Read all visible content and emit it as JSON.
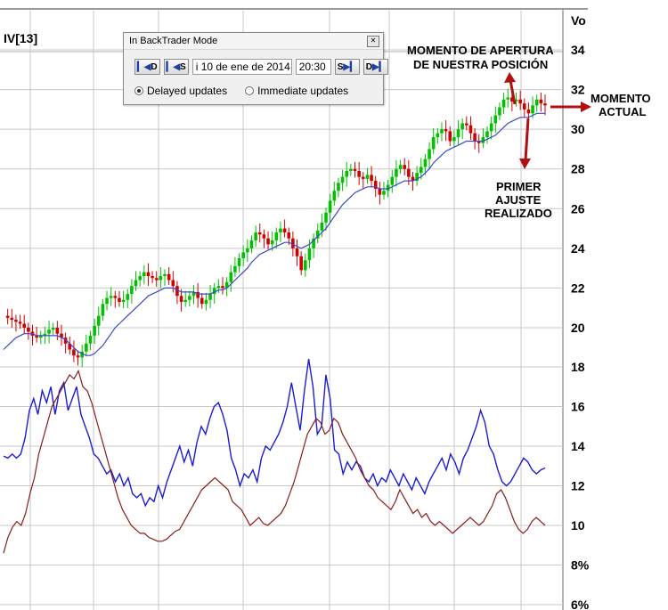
{
  "indicator_label": "IV[13]",
  "axis_header": "Vo",
  "colors": {
    "up": "#00c000",
    "down": "#d00000",
    "ma": "#3a48c8",
    "iv_line": "#1c1cd0",
    "hv_line": "#8b1a1a",
    "annotation_arrow": "#b01010",
    "grid": "#c8c8c8"
  },
  "panel": {
    "title": "In BackTrader Mode",
    "close_icon": "close-icon",
    "buttons": [
      {
        "label": "D",
        "icon": "step-back-icon"
      },
      {
        "label": "S",
        "icon": "step-back-icon"
      }
    ],
    "date": "i 10 de ene de 2014",
    "time": "20:30",
    "forward_buttons": [
      {
        "label": "S",
        "icon": "step-forward-icon"
      },
      {
        "label": "D",
        "icon": "step-forward-icon"
      }
    ],
    "radio_delayed": "Delayed updates",
    "radio_immediate": "Immediate updates",
    "selected": "delayed"
  },
  "annotations": {
    "open_line1": "MOMENTO DE APERTURA",
    "open_line2": "DE NUESTRA POSICIÓN",
    "current_line1": "MOMENTO",
    "current_line2": "ACTUAL",
    "adjust_line1": "PRIMER",
    "adjust_line2": "AJUSTE",
    "adjust_line3": "REALIZADO"
  },
  "chart_data": {
    "type": "line",
    "price_axis": {
      "ticks": [
        "34",
        "32",
        "30",
        "28",
        "26",
        "24",
        "22",
        "20"
      ],
      "range": [
        18.5,
        35.5
      ]
    },
    "vol_axis": {
      "ticks": [
        "18",
        "16",
        "14",
        "12",
        "10",
        "8%",
        "6%"
      ],
      "range": [
        6,
        19
      ]
    },
    "price_close": [
      20.6,
      20.5,
      20.4,
      20.3,
      20.2,
      20.0,
      19.8,
      19.6,
      19.5,
      19.6,
      19.7,
      19.9,
      20.0,
      19.7,
      19.5,
      19.2,
      18.9,
      18.6,
      18.5,
      18.8,
      19.2,
      19.6,
      20.1,
      20.6,
      21.2,
      21.5,
      21.6,
      21.5,
      21.3,
      21.4,
      21.7,
      22.1,
      22.4,
      22.6,
      22.8,
      22.6,
      22.5,
      22.4,
      22.6,
      22.7,
      22.4,
      22.1,
      21.6,
      21.3,
      21.4,
      21.6,
      21.8,
      21.5,
      21.2,
      21.4,
      21.7,
      22.0,
      22.1,
      22.0,
      22.3,
      22.8,
      23.1,
      23.5,
      23.8,
      24.0,
      24.4,
      24.8,
      24.7,
      24.5,
      24.2,
      24.4,
      24.8,
      25.0,
      24.8,
      24.5,
      24.0,
      23.6,
      22.9,
      23.4,
      24.0,
      24.5,
      24.9,
      25.3,
      25.8,
      26.4,
      26.9,
      27.3,
      27.6,
      27.9,
      28.0,
      27.9,
      27.6,
      27.5,
      27.7,
      27.4,
      27.0,
      26.7,
      26.9,
      27.2,
      27.6,
      28.0,
      28.2,
      28.0,
      27.6,
      27.4,
      27.8,
      28.1,
      28.5,
      29.0,
      29.6,
      29.8,
      30.0,
      29.9,
      29.4,
      29.6,
      30.0,
      30.3,
      30.2,
      29.8,
      29.4,
      29.3,
      29.6,
      29.9,
      30.3,
      30.7,
      31.1,
      31.5,
      31.6,
      31.4,
      31.5,
      31.3,
      31.0,
      30.8,
      31.2,
      31.5,
      31.3,
      31.2
    ],
    "moving_average": [
      18.9,
      19.1,
      19.3,
      19.5,
      19.6,
      19.7,
      19.7,
      19.7,
      19.6,
      19.6,
      19.6,
      19.6,
      19.6,
      19.6,
      19.5,
      19.4,
      19.2,
      19.0,
      18.8,
      18.7,
      18.6,
      18.6,
      18.7,
      18.9,
      19.1,
      19.4,
      19.7,
      20.0,
      20.2,
      20.4,
      20.6,
      20.8,
      21.0,
      21.2,
      21.4,
      21.6,
      21.7,
      21.8,
      21.9,
      22.0,
      22.0,
      22.0,
      21.9,
      21.8,
      21.8,
      21.8,
      21.8,
      21.7,
      21.7,
      21.7,
      21.7,
      21.8,
      21.9,
      21.9,
      22.0,
      22.2,
      22.4,
      22.6,
      22.8,
      23.0,
      23.3,
      23.5,
      23.7,
      23.8,
      23.9,
      24.0,
      24.1,
      24.2,
      24.3,
      24.3,
      24.2,
      24.1,
      24.0,
      24.1,
      24.2,
      24.4,
      24.6,
      24.8,
      25.0,
      25.3,
      25.6,
      25.9,
      26.2,
      26.4,
      26.6,
      26.8,
      26.9,
      27.0,
      27.1,
      27.1,
      27.1,
      27.0,
      27.0,
      27.0,
      27.1,
      27.2,
      27.3,
      27.4,
      27.4,
      27.4,
      27.5,
      27.6,
      27.8,
      28.0,
      28.3,
      28.5,
      28.7,
      28.9,
      29.0,
      29.1,
      29.2,
      29.3,
      29.4,
      29.4,
      29.4,
      29.4,
      29.4,
      29.5,
      29.6,
      29.7,
      29.9,
      30.1,
      30.3,
      30.4,
      30.5,
      30.6,
      30.6,
      30.6,
      30.7,
      30.8,
      30.8,
      30.8
    ],
    "series": [
      {
        "values": [
          13.5,
          13.4,
          13.6,
          13.4,
          13.6,
          14.4,
          15.8,
          16.4,
          15.6,
          16.8,
          16.2,
          17.0,
          15.6,
          16.8,
          17.2,
          15.8,
          16.4,
          17.0,
          15.6,
          15.0,
          14.4,
          13.6,
          13.4,
          13.0,
          12.6,
          12.8,
          12.2,
          12.6,
          12.0,
          12.4,
          11.6,
          11.4,
          11.6,
          11.0,
          11.4,
          11.2,
          12.0,
          11.4,
          12.2,
          12.8,
          13.4,
          14.0,
          13.2,
          13.8,
          13.0,
          14.2,
          15.0,
          14.6,
          15.4,
          16.0,
          16.2,
          15.6,
          14.8,
          13.4,
          12.8,
          12.0,
          12.6,
          12.4,
          12.8,
          12.2,
          13.4,
          14.0,
          13.8,
          14.2,
          14.6,
          15.2,
          16.0,
          17.2,
          16.0,
          14.8,
          16.8,
          18.4,
          17.0,
          14.6,
          15.0,
          17.6,
          16.4,
          13.8,
          13.6,
          12.6,
          13.2,
          12.8,
          13.2,
          13.0,
          12.4,
          12.2,
          12.6,
          12.0,
          12.4,
          12.2,
          12.8,
          12.4,
          12.0,
          12.6,
          12.2,
          11.8,
          12.4,
          12.0,
          11.6,
          12.2,
          12.6,
          13.0,
          13.4,
          12.8,
          13.6,
          13.2,
          12.6,
          13.4,
          13.8,
          14.4,
          15.0,
          15.8,
          15.2,
          14.0,
          13.6,
          12.8,
          12.2,
          12.0,
          12.2,
          12.6,
          13.0,
          13.4,
          13.2,
          12.8,
          12.6,
          12.8,
          12.9
        ]
      },
      {
        "values": [
          8.6,
          9.4,
          9.9,
          10.2,
          10.0,
          10.6,
          11.6,
          12.4,
          13.6,
          14.4,
          15.2,
          16.0,
          16.4,
          16.8,
          17.2,
          17.6,
          17.4,
          17.8,
          17.0,
          16.8,
          16.2,
          15.4,
          14.6,
          13.8,
          13.0,
          12.2,
          11.4,
          10.8,
          10.4,
          10.0,
          9.8,
          9.6,
          9.6,
          9.4,
          9.3,
          9.2,
          9.2,
          9.3,
          9.5,
          9.7,
          9.8,
          10.2,
          10.6,
          11.0,
          11.4,
          11.8,
          12.0,
          12.2,
          12.4,
          12.2,
          12.0,
          11.8,
          11.2,
          11.0,
          10.8,
          10.4,
          10.0,
          10.2,
          10.4,
          10.1,
          10.0,
          10.2,
          10.4,
          10.6,
          11.0,
          11.6,
          12.2,
          13.0,
          13.8,
          14.6,
          15.0,
          15.4,
          15.2,
          14.6,
          14.8,
          15.4,
          15.2,
          14.6,
          14.2,
          13.8,
          13.4,
          12.8,
          12.4,
          12.0,
          11.8,
          11.4,
          11.2,
          11.0,
          10.8,
          11.2,
          11.8,
          11.4,
          11.0,
          10.6,
          10.8,
          10.4,
          10.6,
          10.2,
          10.0,
          10.2,
          10.0,
          9.8,
          9.6,
          9.8,
          10.0,
          10.2,
          10.4,
          10.2,
          10.0,
          10.2,
          10.6,
          11.0,
          11.6,
          11.8,
          11.4,
          10.8,
          10.2,
          9.8,
          9.6,
          9.8,
          10.2,
          10.4,
          10.2,
          10.0
        ]
      }
    ]
  }
}
